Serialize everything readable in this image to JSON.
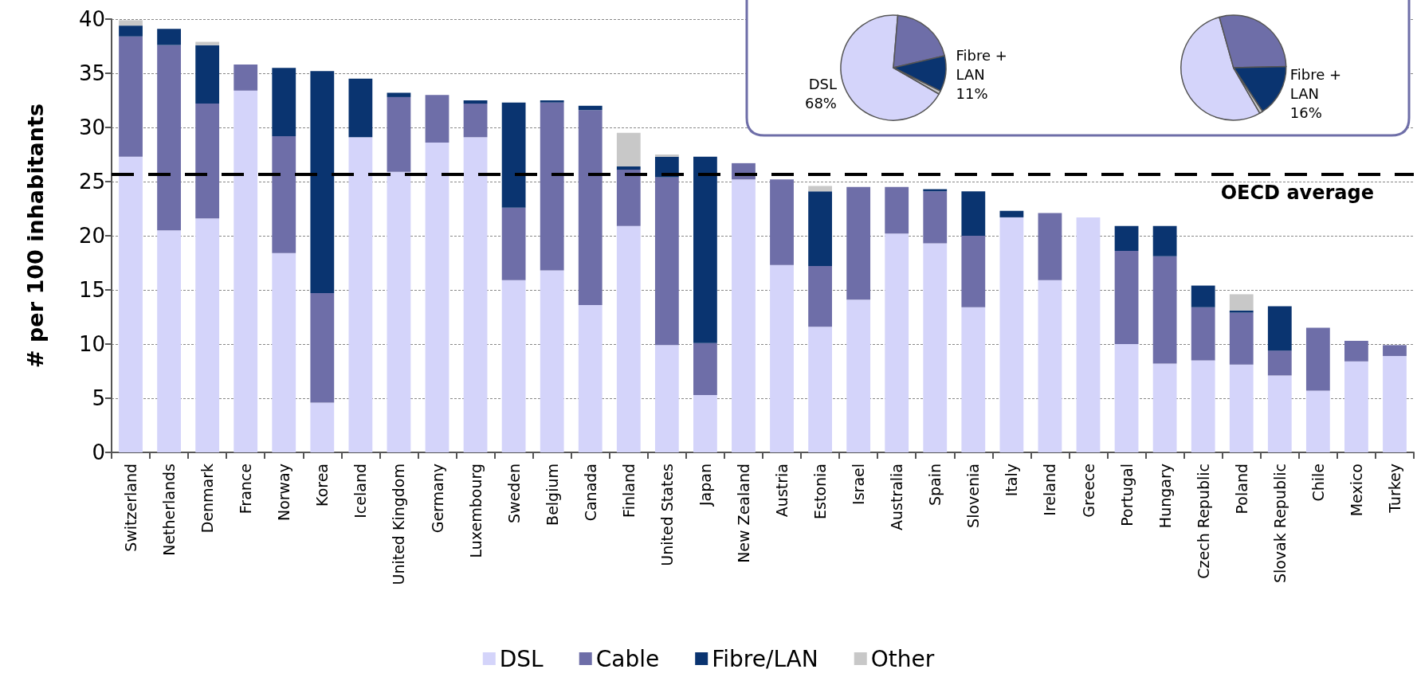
{
  "chart_data": [
    {
      "type": "bar",
      "stacked": true,
      "ylabel": "# per 100 inhabitants",
      "categories": [
        "Switzerland",
        "Netherlands",
        "Denmark",
        "France",
        "Norway",
        "Korea",
        "Iceland",
        "United Kingdom",
        "Germany",
        "Luxembourg",
        "Sweden",
        "Belgium",
        "Canada",
        "Finland",
        "United States",
        "Japan",
        "New Zealand",
        "Austria",
        "Estonia",
        "Israel",
        "Australia",
        "Spain",
        "Slovenia",
        "Italy",
        "Ireland",
        "Greece",
        "Portugal",
        "Hungary",
        "Czech Republic",
        "Poland",
        "Slovak Republic",
        "Chile",
        "Mexico",
        "Turkey"
      ],
      "series": [
        {
          "name": "DSL",
          "color": "#d4d4fa",
          "values": [
            27.3,
            20.5,
            21.6,
            33.4,
            18.4,
            4.6,
            29.1,
            25.9,
            28.6,
            29.1,
            15.9,
            16.8,
            13.6,
            20.9,
            9.9,
            5.3,
            25.2,
            17.3,
            11.6,
            14.1,
            20.2,
            19.3,
            13.4,
            21.7,
            15.9,
            21.7,
            10.0,
            8.2,
            8.5,
            8.1,
            7.1,
            5.7,
            8.4,
            8.9
          ]
        },
        {
          "name": "Cable",
          "color": "#6e6ea8",
          "values": [
            11.1,
            17.1,
            10.6,
            2.4,
            10.8,
            10.1,
            null,
            6.9,
            4.4,
            3.1,
            6.7,
            15.5,
            18.0,
            5.2,
            15.5,
            4.8,
            1.5,
            7.9,
            5.6,
            10.4,
            4.3,
            4.8,
            6.6,
            null,
            6.2,
            null,
            8.6,
            9.9,
            4.9,
            4.8,
            2.3,
            5.8,
            1.9,
            1.0
          ]
        },
        {
          "name": "Fibre/LAN",
          "color": "#0a3470",
          "values": [
            1.0,
            1.5,
            5.4,
            null,
            6.3,
            20.5,
            5.4,
            0.4,
            null,
            0.3,
            9.7,
            0.2,
            0.4,
            0.3,
            1.9,
            17.2,
            null,
            null,
            6.9,
            null,
            null,
            0.2,
            4.1,
            0.6,
            null,
            null,
            2.3,
            2.8,
            2.0,
            0.2,
            4.1,
            null,
            null,
            null
          ]
        },
        {
          "name": "Other",
          "color": "#c8c8c8",
          "values": [
            0.5,
            null,
            0.3,
            null,
            null,
            null,
            null,
            null,
            null,
            null,
            null,
            null,
            null,
            3.1,
            0.2,
            null,
            null,
            null,
            0.5,
            null,
            null,
            null,
            null,
            null,
            null,
            null,
            null,
            null,
            null,
            1.5,
            null,
            null,
            null,
            null
          ]
        }
      ],
      "ylim": [
        0,
        40
      ],
      "yticks": [
        0,
        5,
        10,
        15,
        20,
        25,
        30,
        35,
        40
      ],
      "grid": "y",
      "legend": "bottom",
      "ref_lines": [
        {
          "axis": "y",
          "value": 25.7,
          "label": "OECD average",
          "color": "#000000",
          "line_style": "dashed"
        }
      ]
    },
    {
      "type": "pie",
      "categories": [
        "DSL",
        null,
        "Fibre + LAN",
        null
      ],
      "values": [
        68,
        20,
        11,
        1
      ],
      "colors": [
        "#d4d4fa",
        "#6e6ea8",
        "#0a3470",
        "#c8c8c8"
      ],
      "value_labels": [
        "68%",
        null,
        "11%",
        null
      ]
    },
    {
      "type": "pie",
      "categories": [
        null,
        null,
        "Fibre + LAN",
        null
      ],
      "values": [
        54,
        29,
        16,
        1
      ],
      "colors": [
        "#d4d4fa",
        "#6e6ea8",
        "#0a3470",
        "#c8c8c8"
      ],
      "value_labels": [
        null,
        null,
        "16%",
        null
      ]
    }
  ]
}
